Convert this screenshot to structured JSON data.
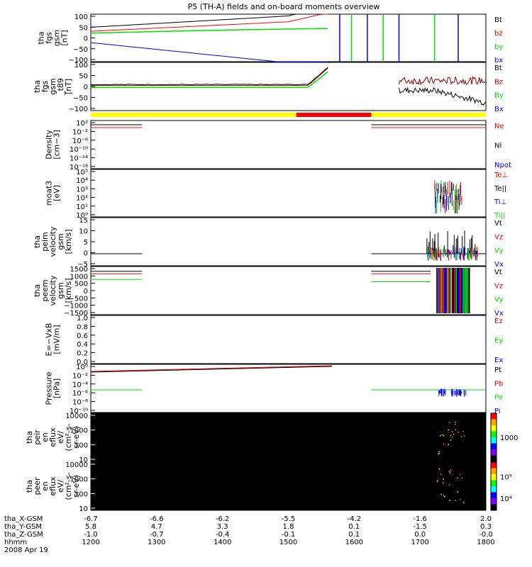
{
  "title": "P5 (TH-A) fields and on-board moments overview",
  "colors": {
    "black": "#000000",
    "red": "#ff0000",
    "green": "#00e000",
    "blue": "#0000ff",
    "yellow": "#ffff00",
    "darkred": "#8b0000"
  },
  "chart_data": [
    {
      "type": "line",
      "ylabel": "tha\nfgs\ngsm\n[nT]",
      "ylim": [
        -100,
        100
      ],
      "ticks": [
        "100",
        "50",
        "0",
        "−50",
        "−100"
      ],
      "legend": [
        {
          "text": "Bt",
          "color": "#000000"
        },
        {
          "text": "bz",
          "color": "#ff0000"
        },
        {
          "text": "by",
          "color": "#00e000"
        },
        {
          "text": "bx",
          "color": "#0000ff"
        }
      ]
    },
    {
      "type": "line",
      "ylabel": "tha\nfgs\ngsm\n_t89\n[nT]",
      "ylim": [
        -125,
        125
      ],
      "ticks": [
        "100",
        "50",
        "0",
        "−50",
        "−100"
      ],
      "legend": [
        {
          "text": "Bt",
          "color": "#000000"
        },
        {
          "text": "Bz",
          "color": "#ff0000"
        },
        {
          "text": "By",
          "color": "#00e000"
        },
        {
          "text": "Bx",
          "color": "#0000ff"
        }
      ]
    },
    {
      "type": "line",
      "ylabel": "Density\n[cm−3]",
      "ticks": [
        "10²",
        "10⁻²",
        "10⁻⁶",
        "10⁻¹⁰",
        "10⁻¹⁴",
        "10⁻¹⁸"
      ],
      "legend": [
        {
          "text": "Ne",
          "color": "#ff0000"
        },
        {
          "text": "Ni",
          "color": "#000000"
        },
        {
          "text": "Npot",
          "color": "#0000ff"
        }
      ]
    },
    {
      "type": "line",
      "ylabel": "moat3\n[eV]",
      "ticks": [
        "10⁵",
        "10⁴",
        "10³",
        "10²",
        "10¹",
        "10⁰"
      ],
      "legend": [
        {
          "text": "Te⊥",
          "color": "#ff0000"
        },
        {
          "text": "Te||",
          "color": "#000000"
        },
        {
          "text": "Ti⊥",
          "color": "#0000ff"
        },
        {
          "text": "Ti||",
          "color": "#00e000"
        }
      ]
    },
    {
      "type": "line",
      "ylabel": "tha\npeim\nvelocity\ngsm\n[km/s]",
      "ylim": [
        -5,
        15
      ],
      "ticks": [
        "15",
        "10",
        "5",
        "0",
        "−5"
      ],
      "legend": [
        {
          "text": "Vt",
          "color": "#000000"
        },
        {
          "text": "Vz",
          "color": "#ff0000"
        },
        {
          "text": "Vy",
          "color": "#00e000"
        },
        {
          "text": "Vx",
          "color": "#0000ff"
        }
      ]
    },
    {
      "type": "line",
      "ylabel": "tha\npeem\nvelocity\ngsm\n[km/s]",
      "ylim": [
        -1500,
        1500
      ],
      "ticks": [
        "1500",
        "1000",
        "500",
        "0",
        "−500",
        "−1000",
        "−1500"
      ],
      "legend": [
        {
          "text": "Vt",
          "color": "#000000"
        },
        {
          "text": "Vz",
          "color": "#ff0000"
        },
        {
          "text": "Vy",
          "color": "#00e000"
        },
        {
          "text": "Vx",
          "color": "#0000ff"
        }
      ]
    },
    {
      "type": "line",
      "ylabel": "E=−VxB\n[mV/m]",
      "ylim": [
        0,
        1
      ],
      "ticks": [
        "1.0",
        "0.8",
        "0.6",
        "0.4",
        "0.2",
        "0.0"
      ],
      "legend": [
        {
          "text": "Ez",
          "color": "#ff0000"
        },
        {
          "text": "Ey",
          "color": "#00e000"
        },
        {
          "text": "Ex",
          "color": "#0000ff"
        }
      ]
    },
    {
      "type": "line",
      "ylabel": "Pressure\n[nPa]",
      "ticks": [
        "10⁰",
        "10⁻²",
        "10⁻⁴",
        "10⁻⁶",
        "10⁻⁸",
        "10⁻¹⁰"
      ],
      "legend": [
        {
          "text": "Pt",
          "color": "#000000"
        },
        {
          "text": "Pb",
          "color": "#ff0000"
        },
        {
          "text": "Pe",
          "color": "#00e000"
        },
        {
          "text": "Pi",
          "color": "#0000ff"
        }
      ]
    },
    {
      "type": "heatmap",
      "ylabel": "tha\npeir\nen\neflux\neV/\n(cm²-s-\nsr-eV)",
      "ticks": [
        "10000",
        "1000",
        "100",
        "10"
      ],
      "colorbar_ticks": [
        "1000"
      ]
    },
    {
      "type": "heatmap",
      "ylabel": "tha\npeer\nen\neflux\neV/\n(cm²-s-\nsr-eV)",
      "ticks": [
        "10000",
        "1000",
        "100",
        "10"
      ],
      "colorbar_ticks": [
        "10⁵",
        "10⁴"
      ]
    }
  ],
  "xaxis": {
    "rows": [
      {
        "label": "tha_X-GSM",
        "values": [
          "-6.7",
          "-6.6",
          "-6.2",
          "-5.5",
          "-4.2",
          "-1.6",
          "2.0"
        ]
      },
      {
        "label": "tha_Y-GSM",
        "values": [
          "5.8",
          "4.7",
          "3.3",
          "1.8",
          "0.1",
          "-1.5",
          "0.3"
        ]
      },
      {
        "label": "tha_Z-GSM",
        "values": [
          "-1.0",
          "-0.7",
          "-0.4",
          "-0.1",
          "0.1",
          "0.0",
          "-0.0"
        ]
      },
      {
        "label": "hhmm",
        "values": [
          "1200",
          "1300",
          "1400",
          "1500",
          "1600",
          "1700",
          "1800"
        ]
      }
    ],
    "date": "2008 Apr 19"
  }
}
